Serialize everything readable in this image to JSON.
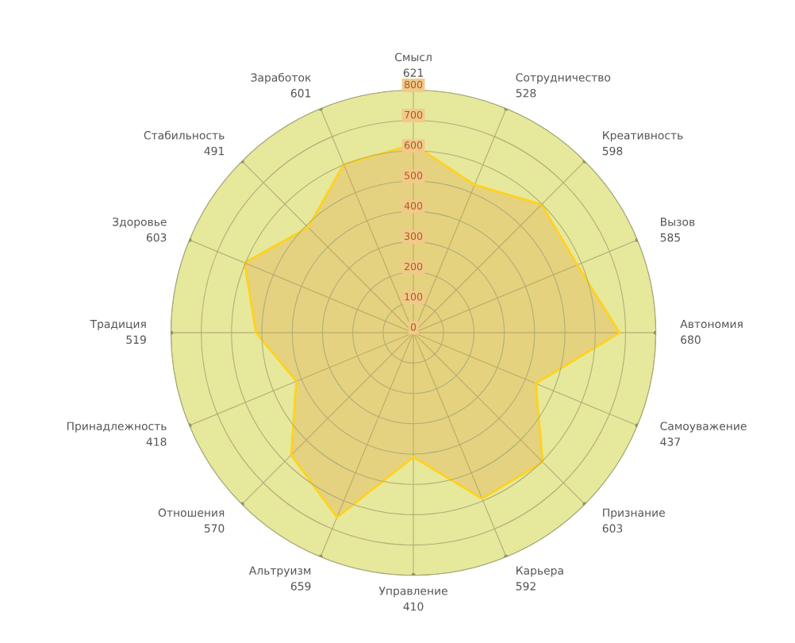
{
  "chart_data": {
    "type": "radar",
    "categories": [
      "Смысл\n621",
      "Сотрудничество\n528",
      "Креативность\n598",
      "Вызов\n585",
      "Автономия\n680",
      "Самоуважение\n437",
      "Признание\n603",
      "Карьера\n592",
      "Управление\n410",
      "Альтруизм\n659",
      "Отношения\n570",
      "Принадлежность\n418",
      "Традиция\n519",
      "Здоровье\n603",
      "Стабильность\n491",
      "Заработок\n601"
    ],
    "series": [
      {
        "color": "#ffd21f",
        "values": [
          621,
          528,
          598,
          585,
          680,
          437,
          603,
          592,
          410,
          659,
          570,
          418,
          519,
          603,
          491,
          601
        ]
      }
    ],
    "ylim": [
      0,
      800
    ],
    "yticks": [
      0,
      100,
      200,
      300,
      400,
      500,
      600,
      700,
      800
    ],
    "grid": true
  }
}
